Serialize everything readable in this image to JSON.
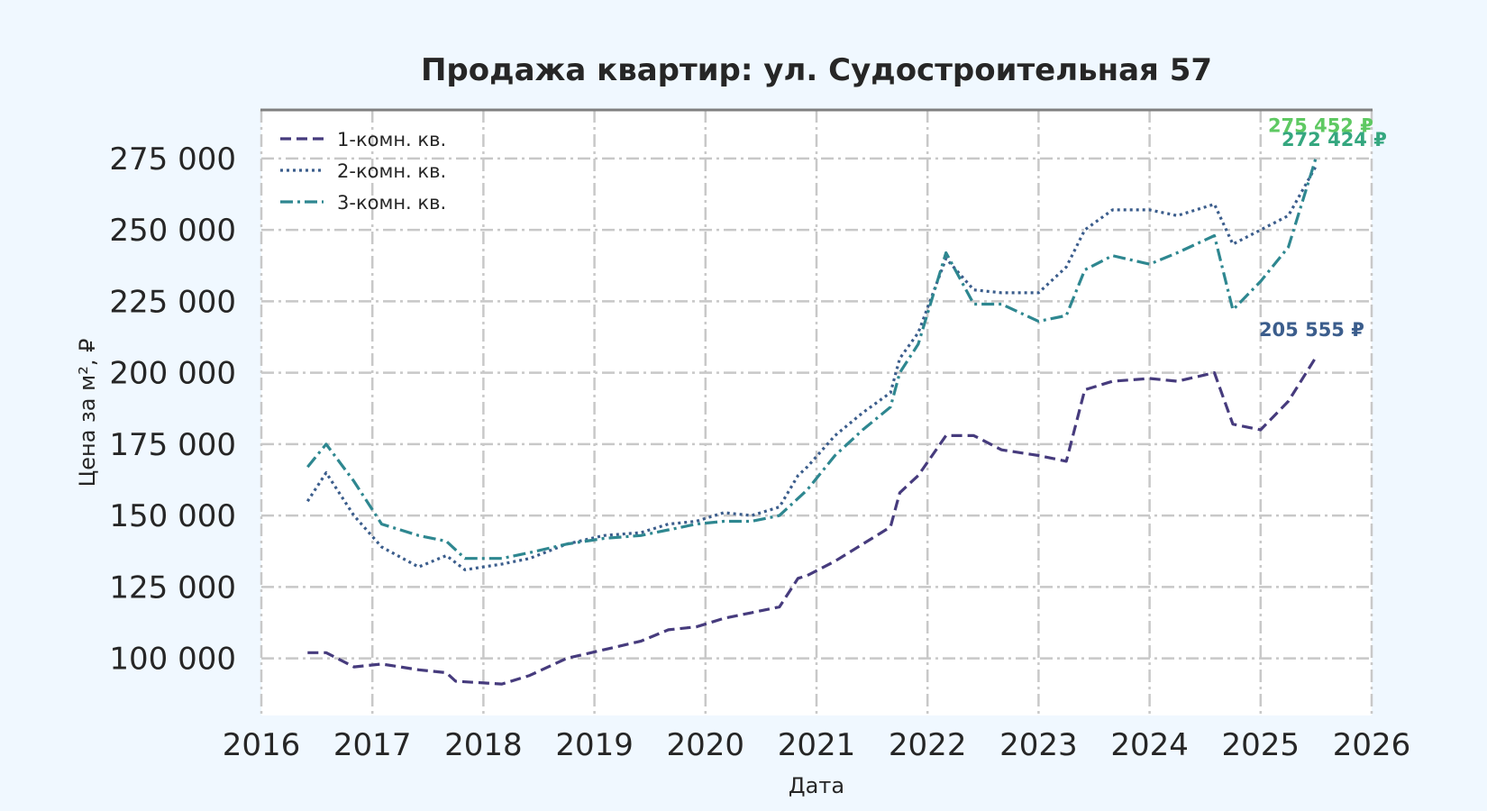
{
  "chart_data": {
    "type": "line",
    "title": "Продажа квартир: ул. Судостроительная 57",
    "xlabel": "Дата",
    "ylabel": "Цена за м², ₽",
    "xlim": [
      "2016-01-01",
      "2026-01-01"
    ],
    "ylim": [
      80000,
      292000
    ],
    "x_ticks": [
      "2016",
      "2017",
      "2018",
      "2019",
      "2020",
      "2021",
      "2022",
      "2023",
      "2024",
      "2025",
      "2026"
    ],
    "y_ticks": [
      100000,
      125000,
      150000,
      175000,
      200000,
      225000,
      250000,
      275000
    ],
    "y_tick_labels": [
      "100 000",
      "125 000",
      "150 000",
      "175 000",
      "200 000",
      "225 000",
      "250 000",
      "275 000"
    ],
    "grid": true,
    "legend_position": "top-left",
    "series": [
      {
        "name": "1-комн. кв.",
        "color": "#463b7d",
        "dash": "dashed",
        "x": [
          "2016-06",
          "2016-08",
          "2016-11",
          "2017-02",
          "2017-06",
          "2017-09",
          "2017-10",
          "2018-03",
          "2018-06",
          "2018-10",
          "2019-02",
          "2019-06",
          "2019-09",
          "2019-12",
          "2020-03",
          "2020-06",
          "2020-09",
          "2020-11",
          "2020-12",
          "2021-03",
          "2021-06",
          "2021-09",
          "2021-10",
          "2021-12",
          "2022-03",
          "2022-06",
          "2022-09",
          "2023-01",
          "2023-04",
          "2023-06",
          "2023-09",
          "2024-01",
          "2024-04",
          "2024-08",
          "2024-10",
          "2025-01",
          "2025-04",
          "2025-07"
        ],
        "values": [
          102000,
          102000,
          97000,
          98000,
          96000,
          95000,
          92000,
          91000,
          94000,
          100000,
          103000,
          106000,
          110000,
          111000,
          114000,
          116000,
          118000,
          128000,
          129000,
          134000,
          140000,
          146000,
          158000,
          164000,
          178000,
          178000,
          173000,
          171000,
          169000,
          194000,
          197000,
          198000,
          197000,
          200000,
          182000,
          180000,
          190000,
          205555
        ]
      },
      {
        "name": "2-комн. кв.",
        "color": "#3b5d8c",
        "dash": "dotted",
        "x": [
          "2016-06",
          "2016-08",
          "2016-11",
          "2017-02",
          "2017-06",
          "2017-09",
          "2017-11",
          "2018-03",
          "2018-06",
          "2018-10",
          "2019-02",
          "2019-06",
          "2019-09",
          "2019-12",
          "2020-03",
          "2020-06",
          "2020-09",
          "2020-11",
          "2020-12",
          "2021-03",
          "2021-06",
          "2021-09",
          "2021-10",
          "2021-12",
          "2022-03",
          "2022-06",
          "2022-09",
          "2023-01",
          "2023-04",
          "2023-06",
          "2023-09",
          "2024-01",
          "2024-04",
          "2024-08",
          "2024-10",
          "2025-01",
          "2025-04",
          "2025-07"
        ],
        "values": [
          155000,
          165000,
          150000,
          139000,
          132000,
          136000,
          131000,
          133000,
          135000,
          140000,
          143000,
          144000,
          147000,
          148000,
          151000,
          150000,
          153000,
          164000,
          167000,
          178000,
          186000,
          193000,
          205000,
          214000,
          240000,
          229000,
          228000,
          228000,
          237000,
          250000,
          257000,
          257000,
          255000,
          259000,
          245000,
          250000,
          255000,
          272424
        ]
      },
      {
        "name": "3-комн. кв.",
        "color": "#2e8790",
        "dash": "dashdot",
        "x": [
          "2016-06",
          "2016-08",
          "2016-11",
          "2017-02",
          "2017-06",
          "2017-09",
          "2017-11",
          "2018-03",
          "2018-06",
          "2018-10",
          "2019-02",
          "2019-06",
          "2019-09",
          "2019-12",
          "2020-03",
          "2020-06",
          "2020-09",
          "2020-11",
          "2020-12",
          "2021-03",
          "2021-06",
          "2021-09",
          "2021-10",
          "2021-12",
          "2022-03",
          "2022-06",
          "2022-09",
          "2023-01",
          "2023-04",
          "2023-06",
          "2023-09",
          "2024-01",
          "2024-04",
          "2024-08",
          "2024-10",
          "2025-01",
          "2025-04",
          "2025-07"
        ],
        "values": [
          167000,
          175000,
          162000,
          147000,
          143000,
          141000,
          135000,
          135000,
          137000,
          140000,
          142000,
          143000,
          145000,
          147000,
          148000,
          148000,
          150000,
          156000,
          159000,
          171000,
          180000,
          188000,
          200000,
          210000,
          242000,
          224000,
          224000,
          218000,
          220000,
          236000,
          241000,
          238000,
          242000,
          248000,
          222000,
          232000,
          244000,
          275452
        ]
      }
    ],
    "annotations": [
      {
        "text": "275 452 ₽",
        "color": "#5ec962",
        "series": 2
      },
      {
        "text": "272 424 ₽",
        "color": "#35a77f",
        "series": 1
      },
      {
        "text": "205 555 ₽",
        "color": "#3b5d8c",
        "series": 0
      }
    ]
  }
}
